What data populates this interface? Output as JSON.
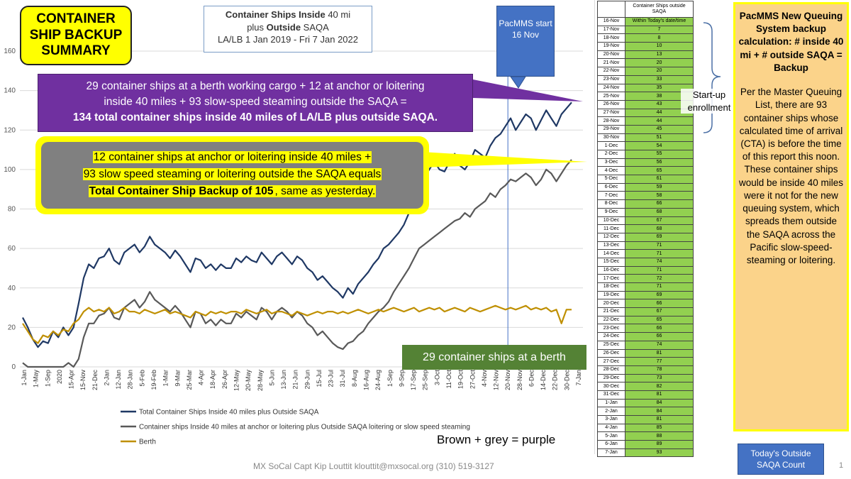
{
  "title_box": {
    "text": "CONTAINER SHIP BACKUP SUMMARY"
  },
  "subtitle": {
    "part1_bold": "Container Ships Inside",
    "part1_rest": " 40 mi",
    "part2_pre": "plus ",
    "part2_bold": "Outside",
    "part2_rest": " SAQA",
    "line3": "LA/LB 1 Jan 2019 - Fri 7 Jan 2022"
  },
  "pacmms_callout": {
    "text": "PacMMS start 16 Nov"
  },
  "purple_callout": {
    "line1": "29 container ships at a berth working cargo + 12 at anchor or loitering",
    "line2": "inside 40 miles + 93 slow-speed steaming outside the SAQA =",
    "line3": "134 total container ships inside 40 miles of LA/LB plus outside SAQA."
  },
  "yellow_callout": {
    "line1": "12 container ships at anchor or loitering inside 40 miles +",
    "line2": "93 slow speed steaming or loitering outside the SAQA equals",
    "line3_bold": "Total Container Ship Backup of 105",
    "line3_rest": ", same as yesterday."
  },
  "green_callout": {
    "text": "29 container ships at a berth"
  },
  "brown_grey_note": "Brown + grey = purple",
  "footer_credit": "MX SoCal Capt Kip Louttit  klouttit@mxsocal.org  (310) 519-3127",
  "page_number": "1",
  "startup_label": "Start-up enrollment",
  "right_panel": {
    "title": "PacMMS New Queuing System backup calculation: # inside 40 mi + # outside SAQA = Backup",
    "body": "Per the Master Queuing List, there are 93 container ships whose calculated time of arrival (CTA) is before the time of this report this noon. These container ships would be inside 40 miles were it not for the new queuing system, which spreads them outside the SAQA across the Pacific slow-speed-steaming or loitering."
  },
  "saqa_count_label": "Today's Outside SAQA Count",
  "saqa_table": {
    "header": "Container Ships outside SAQA",
    "rows": [
      [
        "16-Nov",
        "Within Today's date/time"
      ],
      [
        "17-Nov",
        "7"
      ],
      [
        "18-Nov",
        "8"
      ],
      [
        "19-Nov",
        "10"
      ],
      [
        "20-Nov",
        "13"
      ],
      [
        "21-Nov",
        "20"
      ],
      [
        "22-Nov",
        "20"
      ],
      [
        "23-Nov",
        "33"
      ],
      [
        "24-Nov",
        "35"
      ],
      [
        "25-Nov",
        "38"
      ],
      [
        "26-Nov",
        "43"
      ],
      [
        "27-Nov",
        "44"
      ],
      [
        "28-Nov",
        "44"
      ],
      [
        "29-Nov",
        "45"
      ],
      [
        "30-Nov",
        "51"
      ],
      [
        "1-Dec",
        "54"
      ],
      [
        "2-Dec",
        "55"
      ],
      [
        "3-Dec",
        "56"
      ],
      [
        "4-Dec",
        "65"
      ],
      [
        "5-Dec",
        "61"
      ],
      [
        "6-Dec",
        "59"
      ],
      [
        "7-Dec",
        "58"
      ],
      [
        "8-Dec",
        "66"
      ],
      [
        "9-Dec",
        "68"
      ],
      [
        "10-Dec",
        "67"
      ],
      [
        "11-Dec",
        "68"
      ],
      [
        "12-Dec",
        "69"
      ],
      [
        "13-Dec",
        "71"
      ],
      [
        "14-Dec",
        "71"
      ],
      [
        "15-Dec",
        "74"
      ],
      [
        "16-Dec",
        "71"
      ],
      [
        "17-Dec",
        "72"
      ],
      [
        "18-Dec",
        "71"
      ],
      [
        "19-Dec",
        "69"
      ],
      [
        "20-Dec",
        "66"
      ],
      [
        "21-Dec",
        "67"
      ],
      [
        "22-Dec",
        "65"
      ],
      [
        "23-Dec",
        "66"
      ],
      [
        "24-Dec",
        "66"
      ],
      [
        "25-Dec",
        "74"
      ],
      [
        "26-Dec",
        "81"
      ],
      [
        "27-Dec",
        "77"
      ],
      [
        "28-Dec",
        "78"
      ],
      [
        "29-Dec",
        "73"
      ],
      [
        "30-Dec",
        "82"
      ],
      [
        "31-Dec",
        "81"
      ],
      [
        "1-Jan",
        "84"
      ],
      [
        "2-Jan",
        "84"
      ],
      [
        "3-Jan",
        "81"
      ],
      [
        "4-Jan",
        "85"
      ],
      [
        "5-Jan",
        "88"
      ],
      [
        "6-Jan",
        "89"
      ],
      [
        "7-Jan",
        "93"
      ]
    ]
  },
  "chart_data": {
    "type": "line",
    "ylim": [
      0,
      160
    ],
    "yticks": [
      0,
      20,
      40,
      60,
      80,
      100,
      120,
      140,
      160
    ],
    "x_ticks": [
      "1-Jan",
      "1-May",
      "1-Sep",
      "2020",
      "15-Apr",
      "15-Nov",
      "21-Dec",
      "2-Jan",
      "12-Jan",
      "28-Jan",
      "5-Feb",
      "19-Feb",
      "1-Mar",
      "9-Mar",
      "25-Mar",
      "4-Apr",
      "18-Apr",
      "26-Apr",
      "12-May",
      "20-May",
      "28-May",
      "5-Jun",
      "13-Jun",
      "21-Jun",
      "29-Jun",
      "15-Jul",
      "23-Jul",
      "31-Jul",
      "8-Aug",
      "16-Aug",
      "24-Aug",
      "1-Sep",
      "9-Sep",
      "17-Sep",
      "25-Sep",
      "3-Oct",
      "11-Oct",
      "19-Oct",
      "27-Oct",
      "4-Nov",
      "12-Nov",
      "20-Nov",
      "28-Nov",
      "6-Dec",
      "14-Dec",
      "22-Dec",
      "30-Dec",
      "7-Jan"
    ],
    "pacmms_start_tick": "20-Nov",
    "series": [
      {
        "name": "Total Container Ships Inside 40 miles plus Outside SAQA",
        "color": "#1f3864",
        "values": [
          25,
          20,
          14,
          10,
          13,
          12,
          18,
          15,
          20,
          16,
          20,
          32,
          45,
          52,
          50,
          55,
          56,
          60,
          54,
          52,
          58,
          60,
          62,
          58,
          61,
          66,
          62,
          60,
          58,
          55,
          59,
          56,
          52,
          48,
          55,
          54,
          50,
          52,
          49,
          52,
          50,
          50,
          55,
          53,
          56,
          54,
          53,
          58,
          55,
          52,
          56,
          58,
          55,
          52,
          56,
          54,
          50,
          48,
          44,
          46,
          43,
          40,
          38,
          35,
          40,
          37,
          42,
          45,
          48,
          52,
          55,
          60,
          62,
          65,
          68,
          72,
          78,
          85,
          90,
          96,
          100,
          104,
          100,
          99,
          104,
          108,
          102,
          100,
          104,
          110,
          108,
          106,
          112,
          116,
          118,
          122,
          126,
          120,
          124,
          128,
          126,
          120,
          125,
          130,
          126,
          122,
          128,
          131,
          134
        ]
      },
      {
        "name": "Container ships Inside 40 miles at anchor or loitering plus Outside SAQA loitering or slow speed steaming",
        "color": "#595959",
        "values": [
          2,
          0,
          0,
          0,
          0,
          0,
          0,
          0,
          0,
          2,
          0,
          4,
          15,
          22,
          22,
          26,
          27,
          30,
          25,
          24,
          30,
          32,
          34,
          30,
          33,
          38,
          34,
          32,
          30,
          28,
          31,
          28,
          24,
          20,
          28,
          27,
          22,
          24,
          21,
          24,
          22,
          22,
          27,
          25,
          28,
          26,
          24,
          30,
          28,
          24,
          28,
          30,
          28,
          25,
          28,
          26,
          22,
          20,
          16,
          18,
          15,
          12,
          10,
          9,
          12,
          13,
          16,
          18,
          22,
          25,
          28,
          30,
          33,
          38,
          42,
          46,
          50,
          55,
          60,
          62,
          64,
          66,
          68,
          70,
          72,
          74,
          75,
          78,
          76,
          80,
          82,
          84,
          88,
          86,
          90,
          92,
          95,
          94,
          96,
          98,
          96,
          92,
          95,
          100,
          98,
          94,
          98,
          102,
          105
        ]
      },
      {
        "name": "Berth",
        "color": "#bf8f00",
        "values": [
          22,
          18,
          14,
          12,
          16,
          15,
          18,
          16,
          19,
          18,
          22,
          24,
          28,
          30,
          28,
          29,
          28,
          30,
          27,
          28,
          30,
          28,
          28,
          27,
          29,
          28,
          27,
          28,
          29,
          27,
          28,
          27,
          26,
          25,
          28,
          27,
          26,
          28,
          27,
          28,
          27,
          28,
          28,
          27,
          29,
          28,
          27,
          28,
          29,
          27,
          28,
          28,
          27,
          26,
          28,
          27,
          26,
          27,
          28,
          27,
          28,
          28,
          27,
          28,
          27,
          28,
          29,
          28,
          27,
          28,
          29,
          28,
          29,
          30,
          29,
          28,
          29,
          30,
          28,
          29,
          30,
          29,
          30,
          28,
          29,
          30,
          29,
          28,
          30,
          29,
          28,
          29,
          30,
          31,
          30,
          29,
          30,
          29,
          30,
          31,
          29,
          30,
          29,
          30,
          28,
          29,
          22,
          29,
          29
        ]
      }
    ]
  }
}
